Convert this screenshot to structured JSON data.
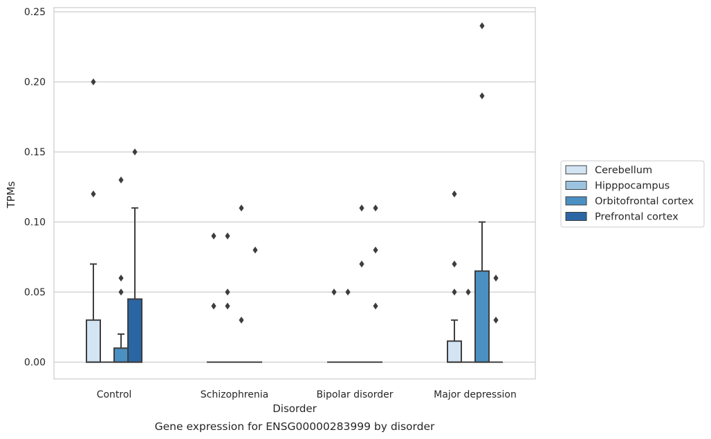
{
  "chart_data": {
    "type": "box",
    "title": "",
    "caption": "Gene expression for ENSG00000283999 by disorder",
    "xlabel": "Disorder",
    "ylabel": "TPMs",
    "ylim": [
      -0.012,
      0.253
    ],
    "yticks": [
      0.0,
      0.05,
      0.1,
      0.15,
      0.2,
      0.25
    ],
    "ytick_labels": [
      "0.00",
      "0.05",
      "0.10",
      "0.15",
      "0.20",
      "0.25"
    ],
    "grid": "horizontal",
    "legend_position": "right",
    "categories": [
      "Control",
      "Schizophrenia",
      "Bipolar disorder",
      "Major depression"
    ],
    "series": [
      {
        "name": "Cerebellum",
        "color": "#d3e4f3",
        "boxes": [
          {
            "category": "Control",
            "q1": 0.0,
            "median": 0.0,
            "q3": 0.03,
            "whisker_low": 0.0,
            "whisker_high": 0.07,
            "outliers": [
              0.12,
              0.2
            ]
          },
          {
            "category": "Schizophrenia",
            "q1": 0.0,
            "median": 0.0,
            "q3": 0.0,
            "whisker_low": 0.0,
            "whisker_high": 0.0,
            "outliers": [
              0.04,
              0.09
            ]
          },
          {
            "category": "Bipolar disorder",
            "q1": 0.0,
            "median": 0.0,
            "q3": 0.0,
            "whisker_low": 0.0,
            "whisker_high": 0.0,
            "outliers": [
              0.05
            ]
          },
          {
            "category": "Major depression",
            "q1": 0.0,
            "median": 0.0,
            "q3": 0.015,
            "whisker_low": 0.0,
            "whisker_high": 0.03,
            "outliers": [
              0.05,
              0.07,
              0.12
            ]
          }
        ]
      },
      {
        "name": "Hipppocampus",
        "color": "#9cc4e0",
        "boxes": [
          {
            "category": "Control",
            "q1": 0.0,
            "median": 0.0,
            "q3": 0.0,
            "whisker_low": 0.0,
            "whisker_high": 0.0,
            "outliers": []
          },
          {
            "category": "Schizophrenia",
            "q1": 0.0,
            "median": 0.0,
            "q3": 0.0,
            "whisker_low": 0.0,
            "whisker_high": 0.0,
            "outliers": [
              0.04,
              0.05,
              0.09
            ]
          },
          {
            "category": "Bipolar disorder",
            "q1": 0.0,
            "median": 0.0,
            "q3": 0.0,
            "whisker_low": 0.0,
            "whisker_high": 0.0,
            "outliers": [
              0.05
            ]
          },
          {
            "category": "Major depression",
            "q1": 0.0,
            "median": 0.0,
            "q3": 0.0,
            "whisker_low": 0.0,
            "whisker_high": 0.0,
            "outliers": [
              0.05
            ]
          }
        ]
      },
      {
        "name": "Orbitofrontal cortex",
        "color": "#4a90c2",
        "boxes": [
          {
            "category": "Control",
            "q1": 0.0,
            "median": 0.0,
            "q3": 0.01,
            "whisker_low": 0.0,
            "whisker_high": 0.02,
            "outliers": [
              0.05,
              0.06,
              0.13
            ]
          },
          {
            "category": "Schizophrenia",
            "q1": 0.0,
            "median": 0.0,
            "q3": 0.0,
            "whisker_low": 0.0,
            "whisker_high": 0.0,
            "outliers": [
              0.03,
              0.11
            ]
          },
          {
            "category": "Bipolar disorder",
            "q1": 0.0,
            "median": 0.0,
            "q3": 0.0,
            "whisker_low": 0.0,
            "whisker_high": 0.0,
            "outliers": [
              0.07,
              0.11
            ]
          },
          {
            "category": "Major depression",
            "q1": 0.0,
            "median": 0.0,
            "q3": 0.065,
            "whisker_low": 0.0,
            "whisker_high": 0.1,
            "outliers": [
              0.19,
              0.24
            ]
          }
        ]
      },
      {
        "name": "Prefrontal cortex",
        "color": "#2a66a4",
        "boxes": [
          {
            "category": "Control",
            "q1": 0.0,
            "median": 0.0,
            "q3": 0.045,
            "whisker_low": 0.0,
            "whisker_high": 0.11,
            "outliers": [
              0.15
            ]
          },
          {
            "category": "Schizophrenia",
            "q1": 0.0,
            "median": 0.0,
            "q3": 0.0,
            "whisker_low": 0.0,
            "whisker_high": 0.0,
            "outliers": [
              0.08
            ]
          },
          {
            "category": "Bipolar disorder",
            "q1": 0.0,
            "median": 0.0,
            "q3": 0.0,
            "whisker_low": 0.0,
            "whisker_high": 0.0,
            "outliers": [
              0.04,
              0.08,
              0.11
            ]
          },
          {
            "category": "Major depression",
            "q1": 0.0,
            "median": 0.0,
            "q3": 0.0,
            "whisker_low": 0.0,
            "whisker_high": 0.0,
            "outliers": [
              0.03,
              0.06
            ]
          }
        ]
      }
    ]
  }
}
